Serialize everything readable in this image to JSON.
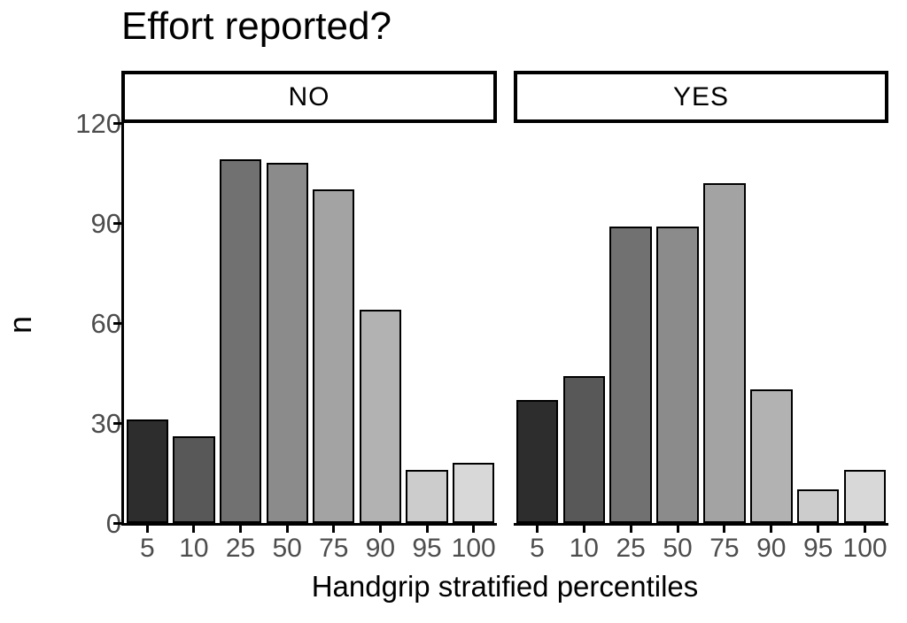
{
  "chart_data": {
    "type": "bar",
    "title": "Effort reported?",
    "xlabel": "Handgrip stratified percentiles",
    "ylabel": "n",
    "categories": [
      "5",
      "10",
      "25",
      "50",
      "75",
      "90",
      "95",
      "100"
    ],
    "facets": [
      {
        "label": "NO",
        "values": [
          31,
          26,
          109,
          108,
          100,
          64,
          16,
          18
        ]
      },
      {
        "label": "YES",
        "values": [
          37,
          44,
          89,
          89,
          102,
          40,
          10,
          16
        ]
      }
    ],
    "ylim": [
      0,
      120
    ],
    "yticks": [
      0,
      30,
      60,
      90,
      120
    ],
    "bar_colors": [
      "#2D2D2D",
      "#585858",
      "#717171",
      "#8B8B8B",
      "#A3A3A3",
      "#B2B2B2",
      "#CCCCCC",
      "#D8D8D8"
    ],
    "bar_border_color": "#000000",
    "axis_color": "#000000",
    "tick_label_color": "#4D4D4D",
    "grid": false,
    "legend_position": "none"
  }
}
